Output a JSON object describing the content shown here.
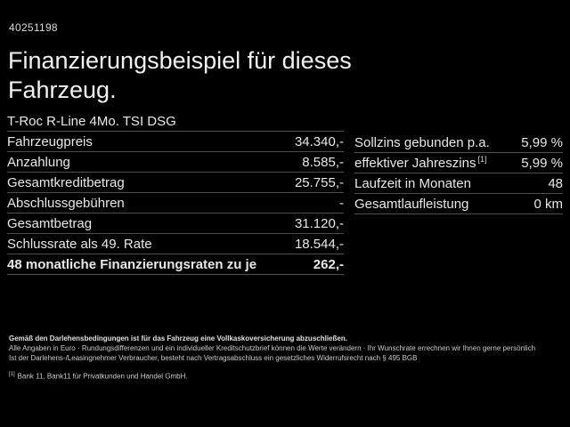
{
  "page": {
    "id": "40251198",
    "title": "Finanzierungsbeispiel für dieses Fahrzeug.",
    "vehicle": "T-Roc R-Line 4Mo. TSI DSG"
  },
  "left_table": {
    "rows": [
      {
        "label": "Fahrzeugpreis",
        "value": "34.340,-"
      },
      {
        "label": "Anzahlung",
        "value": "8.585,-"
      },
      {
        "label": "Gesamtkreditbetrag",
        "value": "25.755,-"
      },
      {
        "label": "Abschlussgebühren",
        "value": "-"
      },
      {
        "label": "Gesamtbetrag",
        "value": "31.120,-"
      },
      {
        "label": "Schlussrate als 49. Rate",
        "value": "18.544,-"
      },
      {
        "label": "48 monatliche Finanzierungsraten zu je",
        "value": "262,-"
      }
    ]
  },
  "right_table": {
    "rows": [
      {
        "label": "Sollzins gebunden p.a.",
        "value": "5,99 %"
      },
      {
        "label": "effektiver Jahreszins",
        "footnote": "[1]",
        "value": "5,99 %"
      },
      {
        "label": "Laufzeit in Monaten",
        "value": "48"
      },
      {
        "label": "Gesamtlaufleistung",
        "value": "0 km"
      }
    ]
  },
  "footer": {
    "line1": "Gemäß den Darlehensbedingungen ist für das Fahrzeug eine Vollkaskoversicherung abzuschließen.",
    "line2": "Alle Angaben in Euro · Rundungsdifferenzen und ein individueller Kreditschutzbrief können die Werte verändern · Ihr Wunschrate errechnen wir Ihnen gerne persönlich",
    "line3": "Ist der Darlehens-/Leasingnehmer Verbraucher, besteht nach Vertragsabschluss ein gesetzliches Widerrufsrecht nach § 495 BGB",
    "footnote_marker": "[1]",
    "footnote_text": "Bank 11, Bank11 für Privatkunden und Handel GmbH."
  },
  "colors": {
    "background": "#000000",
    "text": "#e8e8e8",
    "divider": "#4e4e4e"
  }
}
